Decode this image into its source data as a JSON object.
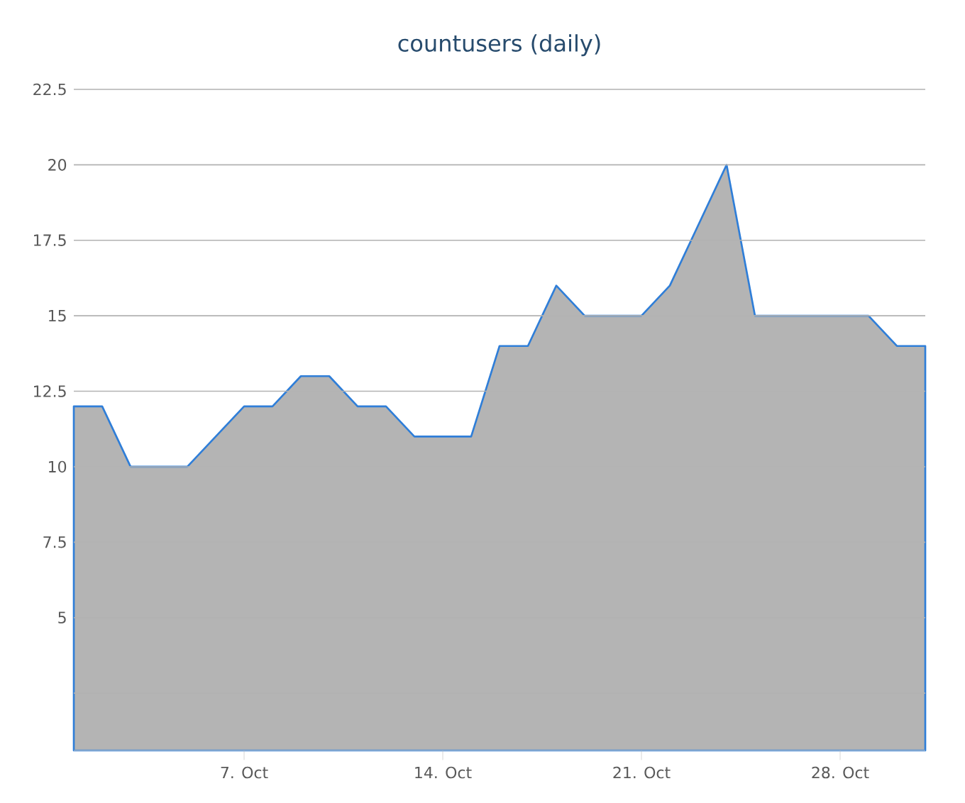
{
  "chart_data": {
    "type": "area",
    "title": "countusers (daily)",
    "x": [
      "--10-01",
      "--10-02",
      "--10-03",
      "--10-04",
      "--10-05",
      "--10-06",
      "--10-07",
      "--10-08",
      "--10-09",
      "--10-10",
      "--10-11",
      "--10-12",
      "--10-13",
      "--10-14",
      "--10-15",
      "--10-16",
      "--10-17",
      "--10-18",
      "--10-19",
      "--10-20",
      "--10-21",
      "--10-22",
      "--10-23",
      "--10-24",
      "--10-25",
      "--10-26",
      "--10-27",
      "--10-28",
      "--10-29",
      "--10-30",
      "--10-31"
    ],
    "values": [
      12,
      12,
      10,
      10,
      10,
      11,
      12,
      12,
      13,
      13,
      12,
      12,
      11,
      11,
      11,
      14,
      14,
      16,
      15,
      15,
      15,
      16,
      18,
      20,
      15,
      15,
      15,
      15,
      15,
      14,
      14
    ],
    "color": "#b4b4b4",
    "xlim": [
      "--10-01",
      "--10-31"
    ],
    "xticks": [
      {
        "value": "--10-07",
        "label": "7. Oct"
      },
      {
        "value": "--10-14",
        "label": "14. Oct"
      },
      {
        "value": "--10-21",
        "label": "21. Oct"
      },
      {
        "value": "--10-28",
        "label": "28. Oct"
      }
    ],
    "ylim": [
      0.6,
      22.5
    ],
    "yticks": [
      {
        "value": 2.5,
        "label": null
      },
      5,
      7.5,
      10,
      12.5,
      15,
      17.5,
      20,
      22.5
    ],
    "grid": "y"
  }
}
